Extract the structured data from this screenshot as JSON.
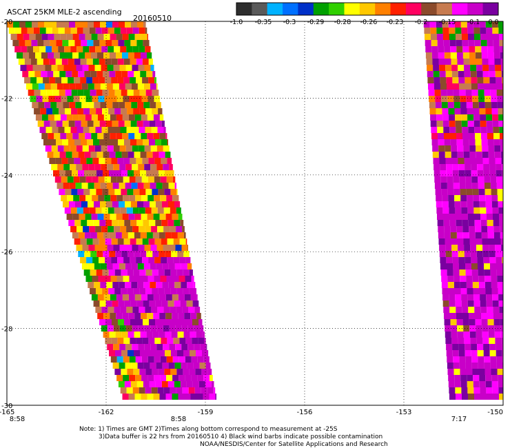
{
  "header": {
    "product": "ASCAT 25KM MLE-2 ascending",
    "date": "20160510"
  },
  "colorbar": {
    "colors": [
      "#2e2e2e",
      "#5a5a5a",
      "#00b2ff",
      "#0070ff",
      "#0030c8",
      "#00a000",
      "#30d000",
      "#ffff00",
      "#ffc800",
      "#ff8000",
      "#ff2000",
      "#ff0060",
      "#8b4a2b",
      "#c77b50",
      "#ff00ff",
      "#c800c8",
      "#7a00a0"
    ],
    "tick_labels": [
      "-1.0",
      "-0.35",
      "-0.3",
      "-0.29",
      "-0.28",
      "-0.26",
      "-0.23",
      "-0.2",
      "-0.15",
      "-0.1",
      "0.0"
    ]
  },
  "map": {
    "lon_ticks": [
      "-165",
      "-162",
      "-159",
      "-156",
      "-153",
      "-150"
    ],
    "lat_ticks": [
      "-20",
      "-22",
      "-24",
      "-26",
      "-28",
      "-30"
    ],
    "lon_range": [
      -165,
      -150
    ],
    "lat_range": [
      -20,
      -30
    ],
    "pass_times": [
      "8:58",
      "8:58",
      "7:17"
    ],
    "swaths": [
      {
        "name": "west-swath",
        "top_west_lon": -165,
        "top_east_lon": -160.8,
        "bottom_west_lon": -161.4,
        "bottom_east_lon": -158.6
      },
      {
        "name": "east-swath",
        "top_west_lon": -152.4,
        "top_east_lon": -150,
        "bottom_west_lon": -151.6,
        "bottom_east_lon": -150
      }
    ]
  },
  "notes": {
    "line1": "Note: 1) Times are GMT 2)Times along bottom correspond to measurement at -25S",
    "line2": "3)Data buffer is 22 hrs from 20160510 4) Black wind barbs indicate possible contamination",
    "line3": "NOAA/NESDIS/Center for Satellite Applications and Research"
  }
}
